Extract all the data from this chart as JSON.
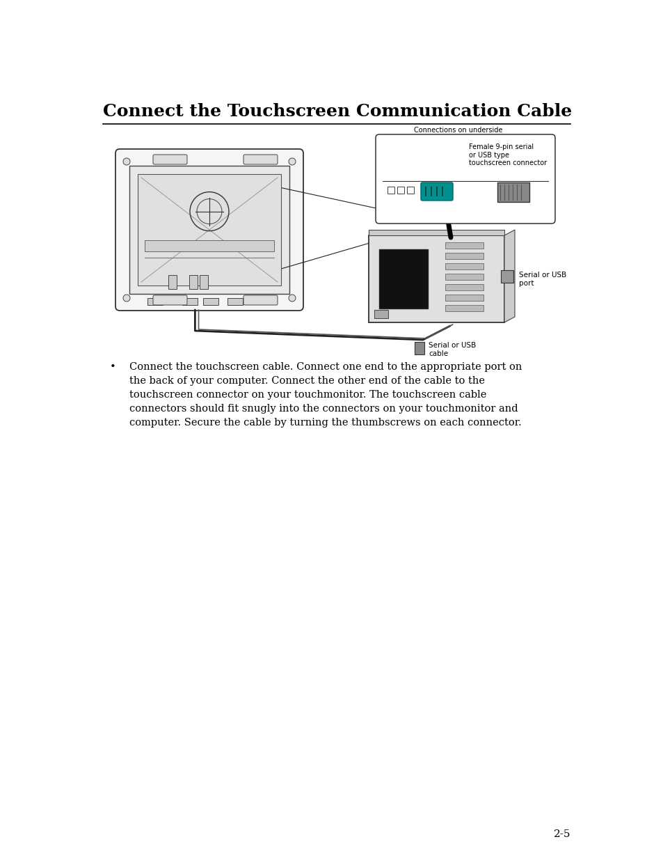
{
  "title": "Connect the Touchscreen Communication Cable",
  "background_color": "#ffffff",
  "title_fontsize": 18,
  "body_text": "Connect the touchscreen cable. Connect one end to the appropriate port on\nthe back of your computer. Connect the other end of the cable to the\ntouchscreen connector on your touchmonitor. The touchscreen cable\nconnectors should fit snugly into the connectors on your touchmonitor and\ncomputer. Secure the cable by turning the thumbscrews on each connector.",
  "body_fontsize": 10.5,
  "page_number": "2-5",
  "label_connections": "Connections on underside",
  "label_female_serial": "Female 9-pin serial\nor USB type\ntouchscreen connector",
  "label_serial_port": "Serial or USB\nport",
  "label_serial_cable": "Serial or USB\ncable",
  "teal_color": "#009090"
}
